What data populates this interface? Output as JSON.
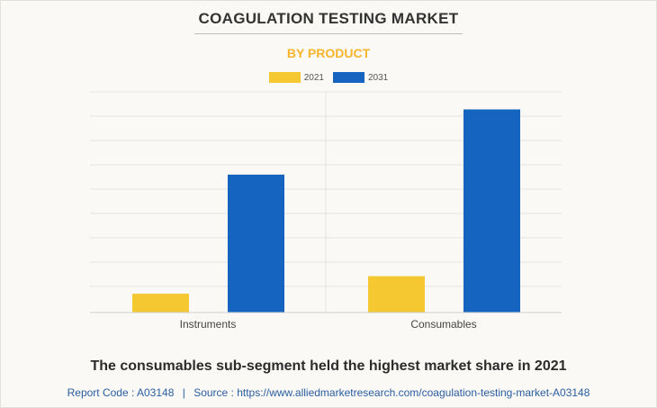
{
  "title": "COAGULATION TESTING MARKET",
  "subtitle": "BY PRODUCT",
  "caption": "The consumables sub-segment held the highest market share in 2021",
  "source": {
    "report_code": "Report Code : A03148",
    "separator": "|",
    "source_text": "Source : https://www.alliedmarketresearch.com/coagulation-testing-market-A03148"
  },
  "colors": {
    "series_2021": "#f5c832",
    "series_2031": "#1565c0",
    "subtitle": "#f7b52c",
    "gridline": "#e0e0e0"
  },
  "chart_data": {
    "type": "bar",
    "categories": [
      "Instruments",
      "Consumables"
    ],
    "series": [
      {
        "name": "2021",
        "values": [
          0.75,
          1.45
        ]
      },
      {
        "name": "2031",
        "values": [
          5.5,
          8.1
        ]
      }
    ],
    "ylim": [
      0,
      8.8
    ],
    "grid": true,
    "legend_position": "top-center",
    "xlabel": "",
    "ylabel": ""
  }
}
